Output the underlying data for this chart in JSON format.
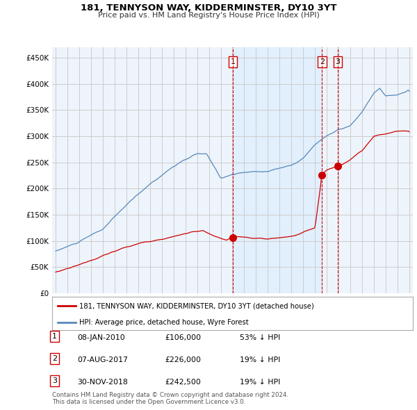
{
  "title": "181, TENNYSON WAY, KIDDERMINSTER, DY10 3YT",
  "subtitle": "Price paid vs. HM Land Registry's House Price Index (HPI)",
  "legend_label_red": "181, TENNYSON WAY, KIDDERMINSTER, DY10 3YT (detached house)",
  "legend_label_blue": "HPI: Average price, detached house, Wyre Forest",
  "transactions": [
    {
      "date_num": 2010.03,
      "price": 106000,
      "label": "1"
    },
    {
      "date_num": 2017.6,
      "price": 226000,
      "label": "2"
    },
    {
      "date_num": 2018.92,
      "price": 242500,
      "label": "3"
    }
  ],
  "table_rows": [
    {
      "label": "1",
      "date": "08-JAN-2010",
      "price": "£106,000",
      "change": "53% ↓ HPI"
    },
    {
      "label": "2",
      "date": "07-AUG-2017",
      "price": "£226,000",
      "change": "19% ↓ HPI"
    },
    {
      "label": "3",
      "date": "30-NOV-2018",
      "price": "£242,500",
      "change": "19% ↓ HPI"
    }
  ],
  "footer": "Contains HM Land Registry data © Crown copyright and database right 2024.\nThis data is licensed under the Open Government Licence v3.0.",
  "ylim": [
    0,
    470000
  ],
  "yticks": [
    0,
    50000,
    100000,
    150000,
    200000,
    250000,
    300000,
    350000,
    400000,
    450000
  ],
  "red_color": "#cc0000",
  "blue_color": "#5588bb",
  "shade_color": "#ddeeff",
  "vline_color": "#cc0000",
  "dot_color": "#cc0000",
  "grid_color": "#cccccc",
  "background_color": "#ffffff",
  "chart_bg": "#eef4fb"
}
